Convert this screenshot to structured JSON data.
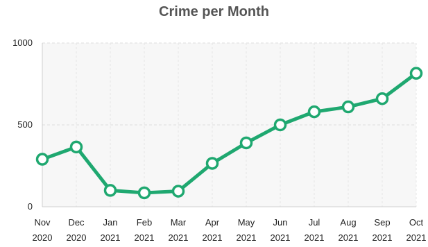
{
  "chart_data": {
    "type": "line",
    "title": "Crime per Month",
    "xlabel": "",
    "ylabel": "",
    "categories": [
      [
        "Nov",
        "2020"
      ],
      [
        "Dec",
        "2020"
      ],
      [
        "Jan",
        "2021"
      ],
      [
        "Feb",
        "2021"
      ],
      [
        "Mar",
        "2021"
      ],
      [
        "Apr",
        "2021"
      ],
      [
        "May",
        "2021"
      ],
      [
        "Jun",
        "2021"
      ],
      [
        "Jul",
        "2021"
      ],
      [
        "Aug",
        "2021"
      ],
      [
        "Sep",
        "2021"
      ],
      [
        "Oct",
        "2021"
      ]
    ],
    "series": [
      {
        "values": [
          290,
          365,
          100,
          85,
          95,
          265,
          390,
          500,
          580,
          610,
          660,
          815
        ]
      }
    ],
    "ylim": [
      0,
      1000
    ],
    "yticks": [
      0,
      500,
      1000
    ],
    "grid": true,
    "line_color": "#1fa870",
    "marker_fill": "#ffffff"
  }
}
